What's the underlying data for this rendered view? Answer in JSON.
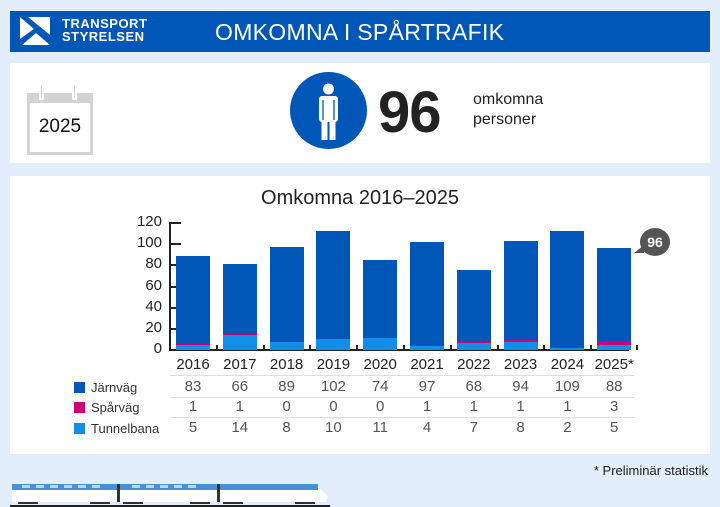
{
  "header": {
    "logo_line1": "TRANSPORT",
    "logo_line2": "STYRELSEN",
    "title": "OMKOMNA I SPÅRTRAFIK"
  },
  "summary": {
    "year": "2025",
    "icon": "person-icon",
    "count": "96",
    "label_line1": "omkomna",
    "label_line2": "personer"
  },
  "colors": {
    "brand": "#0057b8",
    "jarnvag": "#0057b8",
    "sparvag": "#cc0077",
    "tunnelbana": "#118ee8",
    "background": "#e2eefb"
  },
  "footnote": "Preliminär statistik",
  "footnote_mark": "*",
  "chart_data": {
    "type": "bar",
    "stacked": true,
    "title": "Omkomna 2016–2025",
    "xlabel": "",
    "ylabel": "",
    "ylim": [
      0,
      120
    ],
    "yticks": [
      0,
      20,
      40,
      60,
      80,
      100,
      120
    ],
    "categories": [
      "2016",
      "2017",
      "2018",
      "2019",
      "2020",
      "2021",
      "2022",
      "2023",
      "2024",
      "2025*"
    ],
    "series": [
      {
        "name": "Tunnelbana",
        "color": "#118ee8",
        "values": [
          5,
          14,
          8,
          10,
          11,
          4,
          7,
          8,
          2,
          5
        ]
      },
      {
        "name": "Spårväg",
        "color": "#cc0077",
        "values": [
          1,
          1,
          0,
          0,
          0,
          1,
          1,
          1,
          1,
          3
        ]
      },
      {
        "name": "Järnväg",
        "color": "#0057b8",
        "values": [
          83,
          66,
          89,
          102,
          74,
          97,
          68,
          94,
          109,
          88
        ]
      }
    ],
    "totals": [
      89,
      81,
      97,
      112,
      85,
      102,
      76,
      103,
      112,
      96
    ],
    "annotation": {
      "category": "2025*",
      "label": "96"
    },
    "legend": [
      "Järnväg",
      "Spårväg",
      "Tunnelbana"
    ],
    "legend_position": "left of data table",
    "grid": false
  },
  "table": {
    "rows": [
      {
        "label": "Järnväg",
        "values": [
          "83",
          "66",
          "89",
          "102",
          "74",
          "97",
          "68",
          "94",
          "109",
          "88"
        ]
      },
      {
        "label": "Spårväg",
        "values": [
          "1",
          "1",
          "0",
          "0",
          "0",
          "1",
          "1",
          "1",
          "1",
          "3"
        ]
      },
      {
        "label": "Tunnelbana",
        "values": [
          "5",
          "14",
          "8",
          "10",
          "11",
          "4",
          "7",
          "8",
          "2",
          "5"
        ]
      }
    ]
  }
}
